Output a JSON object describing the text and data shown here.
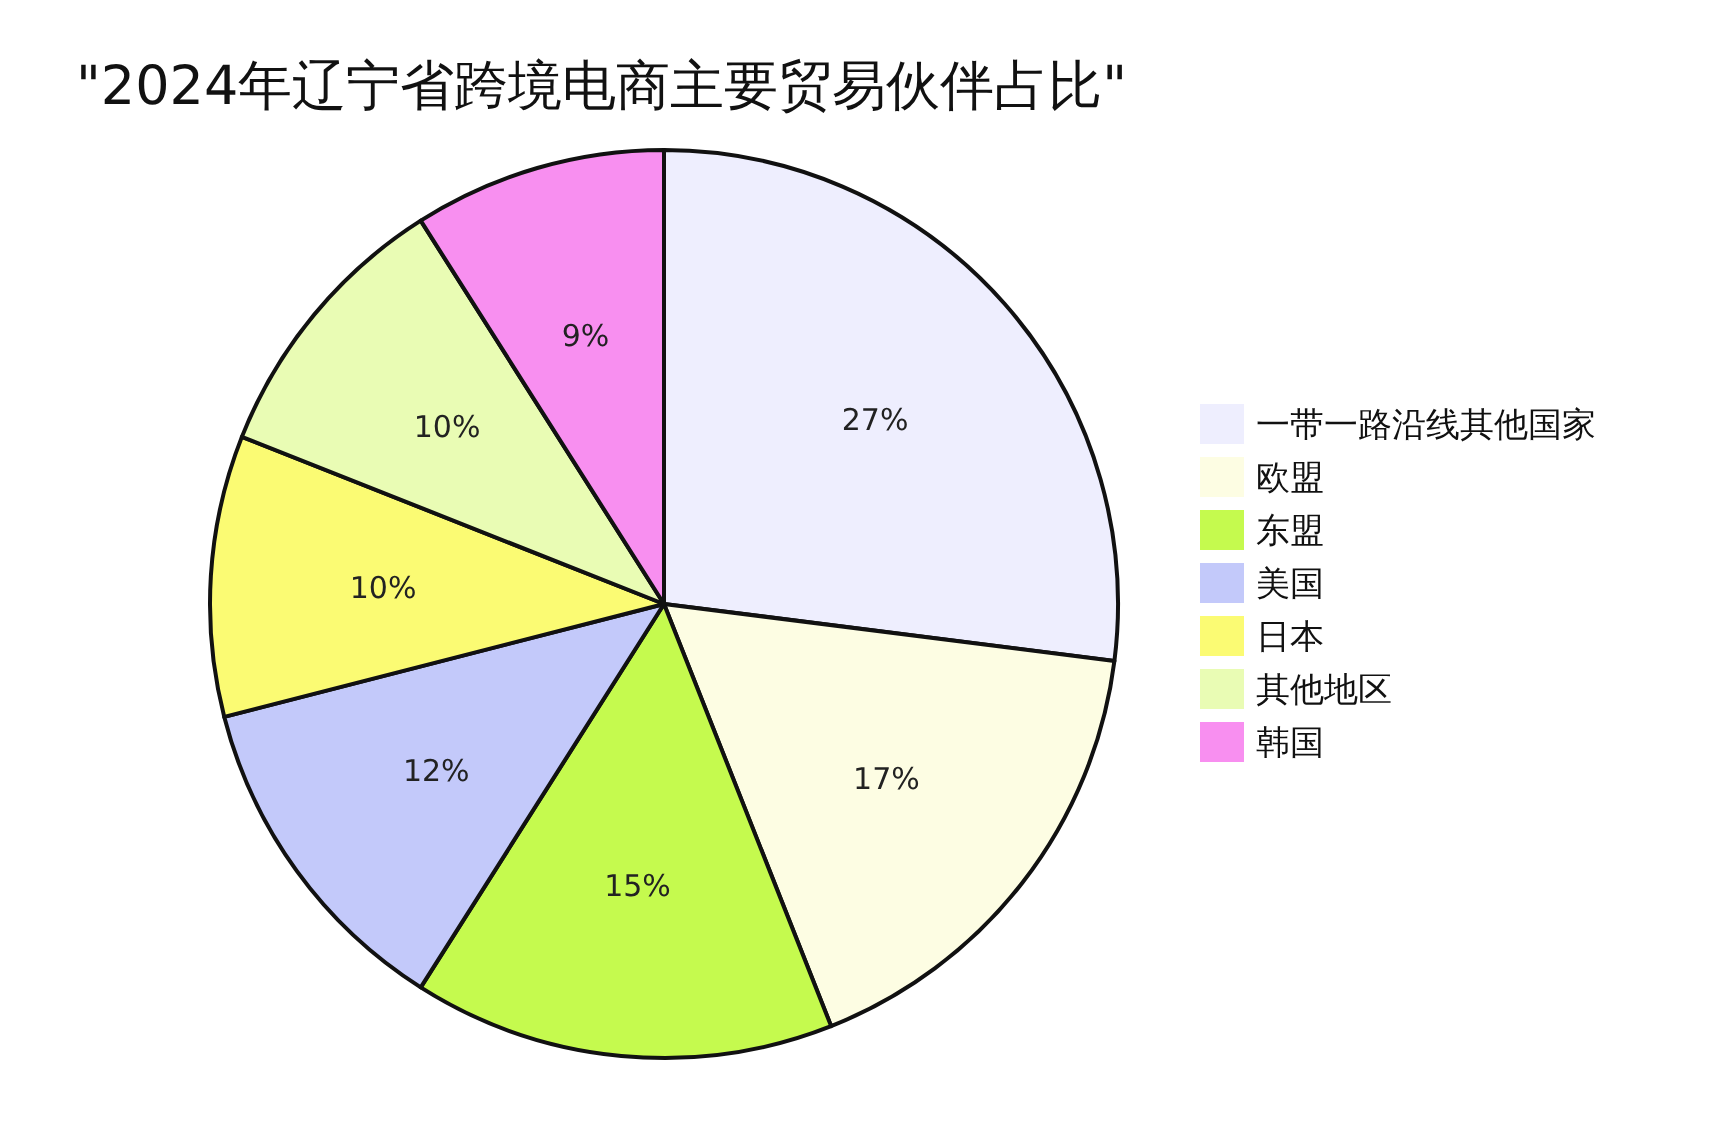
{
  "chart_data": {
    "type": "pie",
    "title": "\"2024年辽宁省跨境电商主要贸易伙伴占比\"",
    "categories": [
      "一带一路沿线其他国家",
      "欧盟",
      "东盟",
      "美国",
      "日本",
      "其他地区",
      "韩国"
    ],
    "values": [
      27,
      17,
      15,
      12,
      10,
      10,
      9
    ],
    "colors": [
      "#eeeefe",
      "#fdfde3",
      "#c5fa4e",
      "#c3c9fa",
      "#fbfb73",
      "#e9fcb4",
      "#f88ff0"
    ],
    "value_labels": [
      "27%",
      "17%",
      "15%",
      "12%",
      "10%",
      "10%",
      "9%"
    ],
    "legend": "right"
  }
}
